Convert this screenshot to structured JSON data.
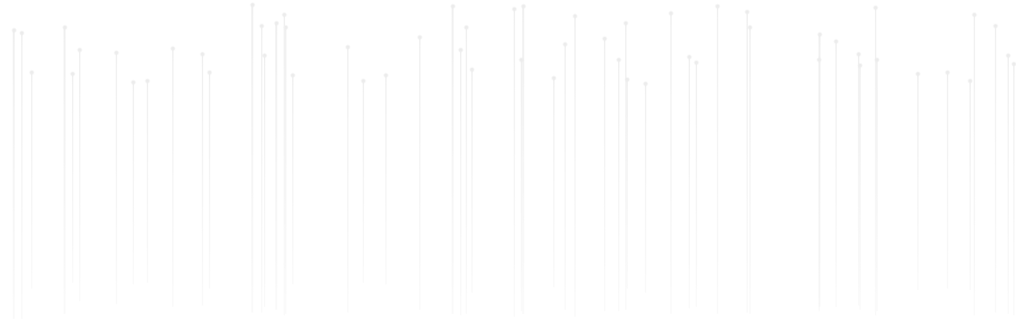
{
  "background": "#ffffff",
  "streak_color": "#f1f1f1",
  "streak_dot_color": "#ececec",
  "content": {
    "description_visible_text": ""
  }
}
